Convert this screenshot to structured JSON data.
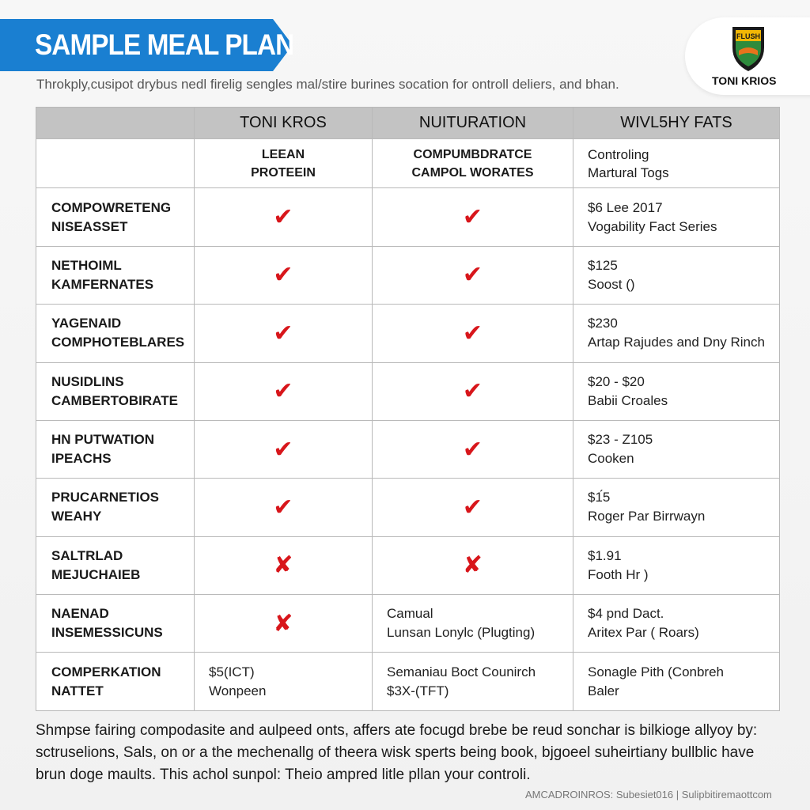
{
  "header": {
    "title": "SAMPLE MEAL PLAN",
    "subtitle": "Throkply,cusipot drybus nedl firelig sengles mal/stire burines socation for ontroll deliers, and bhan."
  },
  "logo": {
    "crest_text": "FLUSH",
    "name": "TONI KRIOS"
  },
  "table": {
    "columns": [
      "",
      "TONI KROS",
      "NUITURATION",
      "WIVL5HY FATS"
    ],
    "subheader": {
      "col1": [
        "LEEAN",
        "PROTEEIN"
      ],
      "col2": [
        "COMPUMBDRATCE",
        "CAMPOL WORATES"
      ],
      "col3": [
        "Controling",
        "Martural Togs"
      ]
    },
    "rows": [
      {
        "label": [
          "COMPOWRETENG",
          "NISEASSET"
        ],
        "col1": "✔",
        "col2": "✔",
        "col3": [
          "$6 Lee 2017",
          "Vogability Fact Series"
        ]
      },
      {
        "label": [
          "NETHOIML",
          "KAMFERNATES"
        ],
        "col1": "✔",
        "col2": "✔",
        "col3": [
          "$125",
          "Soost ()"
        ]
      },
      {
        "label": [
          "YAGENAID",
          "COMPHOTEBLARES"
        ],
        "col1": "✔",
        "col2": "✔",
        "col3": [
          "$230",
          "Artap Rajudes and Dny Rinch"
        ]
      },
      {
        "label": [
          "NUSIDLINS",
          "CAMBERTOBIRATE"
        ],
        "col1": "✔",
        "col2": "✔",
        "col3": [
          "$20 - $20",
          "Babii Croales"
        ]
      },
      {
        "label": [
          "HN PUTWATION",
          "IPEACHS"
        ],
        "col1": "✔",
        "col2": "✔",
        "col3": [
          "$23 - Z105",
          "Cooken"
        ]
      },
      {
        "label": [
          "PRUCARNETIOS",
          "WEAHY"
        ],
        "col1": "✔",
        "col2": "✔",
        "col3": [
          "$1́5",
          "Roger Par Birrwayn"
        ]
      },
      {
        "label": [
          "SALTRLAD",
          "MEJUCHAIEB"
        ],
        "col1": "✘",
        "col2": "✘",
        "col3": [
          "$1.91",
          "Footh Hr )"
        ]
      },
      {
        "label": [
          "NAENAD",
          "INSEMESSICUNS"
        ],
        "col1": "✘",
        "col2": [
          "Camual",
          "Lunsan Lonylc (Plugting)"
        ],
        "col3": [
          "$4 pnd Dact.",
          "Aritex Par ( Roars)"
        ]
      },
      {
        "label": [
          "COMPERKATION",
          "NATTET"
        ],
        "col1": [
          "$5(ICT)",
          "Wonpeen"
        ],
        "col2": [
          "Semaniau Boct Counirch",
          "$3X-(TFT)"
        ],
        "col3": [
          "Sonagle Pith (Conbreh",
          "Baler"
        ]
      }
    ]
  },
  "footer": {
    "paragraph": "Shmpse fairing compodasite and aulpeed onts, affers ate focugd brebe be reud sonchar is bilkioge allyoy by: sctruselions, Sals, on or a the mechenallg of theera wisk sperts being book, bjgoeel suheirtiany bullblic have brun doge maults. This achol sunpol: Theio ampred litle pllan your controli.",
    "credits": "AMCADROINROS: Subesiet016  |  Sulipbitiremaottcom"
  },
  "colors": {
    "banner_blue": "#1a7fd1",
    "check_red": "#d8161b",
    "header_gray": "#c3c3c3"
  }
}
